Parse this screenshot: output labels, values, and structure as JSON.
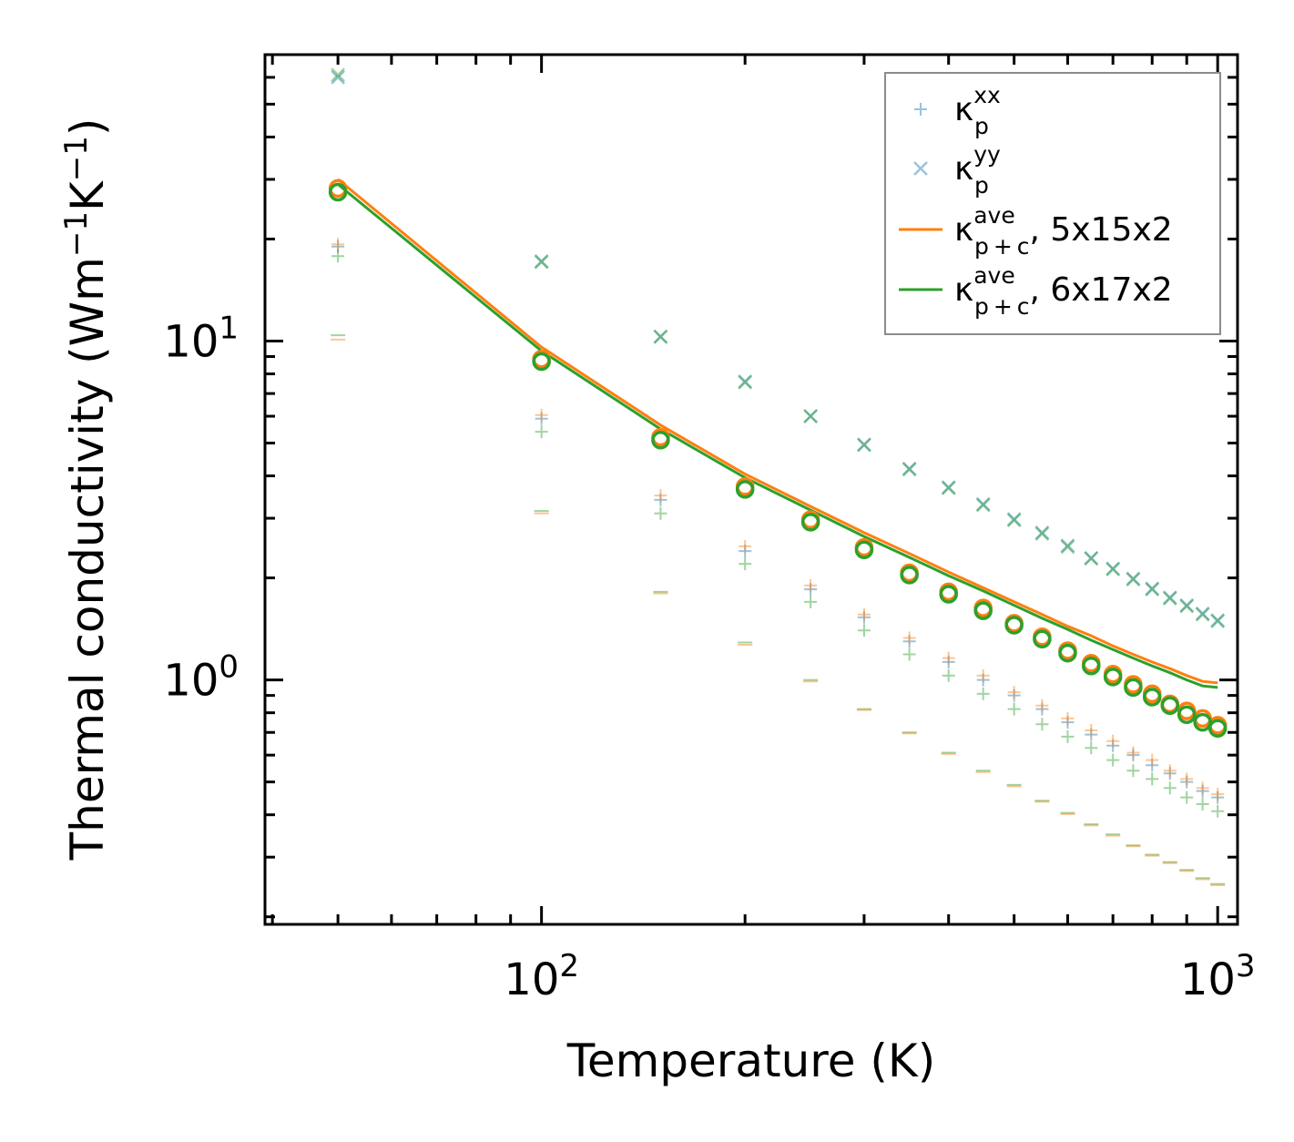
{
  "chart_data": {
    "type": "scatter",
    "title": "",
    "xlabel": "Temperature (K)",
    "ylabel": {
      "main": "Thermal conductivity (Wm",
      "sup1": "−1",
      "mid": "K",
      "sup2": "−1",
      "end": ")"
    },
    "xscale": "log",
    "yscale": "log",
    "xlim": [
      39,
      1070
    ],
    "ylim": [
      0.19,
      70
    ],
    "x_tick_labels": [
      {
        "value": 100,
        "base": "10",
        "exp": "2"
      },
      {
        "value": 1000,
        "base": "10",
        "exp": "3"
      }
    ],
    "y_tick_labels": [
      {
        "value": 1,
        "base": "10",
        "exp": "0"
      },
      {
        "value": 10,
        "base": "10",
        "exp": "1"
      }
    ],
    "x": [
      50,
      100,
      150,
      200,
      250,
      300,
      350,
      400,
      450,
      500,
      550,
      600,
      650,
      700,
      750,
      800,
      850,
      900,
      950,
      1000
    ],
    "colors": {
      "blue": "#1f77b4",
      "orange": "#ff7f0e",
      "green": "#2ca02c"
    },
    "series": [
      {
        "name": "kappa_p_xx",
        "legend": true,
        "marker": "plus",
        "color": "#1f77b4",
        "opacity": 0.45,
        "values": [
          19.0,
          5.9,
          3.4,
          2.4,
          1.85,
          1.53,
          1.3,
          1.13,
          1.0,
          0.9,
          0.82,
          0.75,
          0.69,
          0.64,
          0.6,
          0.56,
          0.53,
          0.5,
          0.47,
          0.45
        ]
      },
      {
        "name": "kappa_p_yy",
        "legend": true,
        "marker": "x",
        "color": "#1f77b4",
        "opacity": 0.45,
        "values": [
          60,
          17.2,
          10.3,
          7.6,
          6.0,
          4.95,
          4.2,
          3.7,
          3.3,
          2.98,
          2.72,
          2.49,
          2.29,
          2.13,
          1.99,
          1.86,
          1.75,
          1.66,
          1.57,
          1.5
        ]
      },
      {
        "name": "kappa_pc_ave_5x15x2",
        "legend": true,
        "marker": "line",
        "color": "#ff7f0e",
        "opacity": 1,
        "values": [
          30.0,
          9.6,
          5.65,
          4.05,
          3.25,
          2.72,
          2.36,
          2.08,
          1.87,
          1.7,
          1.56,
          1.44,
          1.35,
          1.26,
          1.19,
          1.13,
          1.08,
          1.03,
          0.99,
          0.98
        ]
      },
      {
        "name": "kappa_pc_ave_6x17x2",
        "legend": true,
        "marker": "line",
        "color": "#2ca02c",
        "opacity": 1,
        "values": [
          29.0,
          9.35,
          5.5,
          3.95,
          3.17,
          2.65,
          2.3,
          2.03,
          1.83,
          1.66,
          1.52,
          1.41,
          1.31,
          1.23,
          1.16,
          1.1,
          1.05,
          1.0,
          0.96,
          0.95
        ]
      },
      {
        "name": "kappa_p_xx_green",
        "legend": false,
        "marker": "plus",
        "color": "#2ca02c",
        "opacity": 0.45,
        "values": [
          17.8,
          5.4,
          3.1,
          2.2,
          1.7,
          1.4,
          1.19,
          1.03,
          0.91,
          0.82,
          0.74,
          0.68,
          0.63,
          0.58,
          0.54,
          0.51,
          0.48,
          0.45,
          0.43,
          0.41
        ]
      },
      {
        "name": "kappa_p_yy_green",
        "legend": false,
        "marker": "x",
        "color": "#2ca02c",
        "opacity": 0.45,
        "values": [
          61,
          17.1,
          10.3,
          7.55,
          6.0,
          4.93,
          4.18,
          3.68,
          3.28,
          2.96,
          2.7,
          2.47,
          2.28,
          2.12,
          1.98,
          1.85,
          1.74,
          1.65,
          1.56,
          1.49
        ]
      },
      {
        "name": "kappa_p_xx_orange",
        "legend": false,
        "marker": "plus",
        "color": "#ff7f0e",
        "opacity": 0.45,
        "values": [
          19.3,
          6.05,
          3.5,
          2.48,
          1.9,
          1.56,
          1.33,
          1.16,
          1.03,
          0.92,
          0.84,
          0.77,
          0.71,
          0.66,
          0.61,
          0.58,
          0.54,
          0.51,
          0.48,
          0.46
        ]
      },
      {
        "name": "kappa_c_green",
        "legend": false,
        "marker": "dash",
        "color": "#2ca02c",
        "opacity": 0.45,
        "values": [
          10.4,
          3.15,
          1.82,
          1.29,
          1.0,
          0.82,
          0.7,
          0.61,
          0.54,
          0.49,
          0.44,
          0.405,
          0.375,
          0.35,
          0.325,
          0.305,
          0.29,
          0.275,
          0.26,
          0.25
        ]
      },
      {
        "name": "kappa_c_orange",
        "legend": false,
        "marker": "dash",
        "color": "#ff7f0e",
        "opacity": 0.45,
        "values": [
          10.1,
          3.1,
          1.8,
          1.27,
          0.99,
          0.815,
          0.695,
          0.605,
          0.535,
          0.485,
          0.437,
          0.402,
          0.372,
          0.347,
          0.323,
          0.303,
          0.288,
          0.273,
          0.258,
          0.248
        ]
      },
      {
        "name": "kappa_ave_circle_orange",
        "legend": false,
        "marker": "circle",
        "color": "#ff7f0e",
        "opacity": 1,
        "values": [
          28.2,
          8.85,
          5.2,
          3.72,
          2.97,
          2.46,
          2.07,
          1.82,
          1.63,
          1.47,
          1.34,
          1.22,
          1.12,
          1.04,
          0.97,
          0.91,
          0.85,
          0.81,
          0.77,
          0.735
        ]
      },
      {
        "name": "kappa_ave_circle_green",
        "legend": false,
        "marker": "circle",
        "color": "#2ca02c",
        "opacity": 1,
        "values": [
          27.5,
          8.7,
          5.1,
          3.65,
          2.92,
          2.42,
          2.04,
          1.79,
          1.6,
          1.45,
          1.32,
          1.2,
          1.1,
          1.02,
          0.95,
          0.89,
          0.84,
          0.79,
          0.75,
          0.72
        ]
      }
    ],
    "legend": {
      "location": "top-right",
      "entries": [
        {
          "symbol": "κ",
          "sub": "p",
          "sup": "xx",
          "suffix": ""
        },
        {
          "symbol": "κ",
          "sub": "p",
          "sup": "yy",
          "suffix": ""
        },
        {
          "symbol": "κ",
          "sub": "p + c",
          "sup": "ave",
          "suffix": ", 5x15x2"
        },
        {
          "symbol": "κ",
          "sub": "p + c",
          "sup": "ave",
          "suffix": ", 6x17x2"
        }
      ]
    }
  }
}
